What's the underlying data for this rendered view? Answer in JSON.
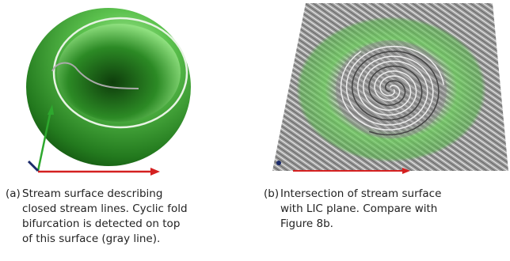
{
  "figures": [
    {
      "label": "(a)",
      "caption_lines": [
        "Stream surface describing",
        "closed stream lines. Cyclic fold",
        "bifurcation is detected on top",
        "of this surface (gray line)."
      ]
    },
    {
      "label": "(b)",
      "caption_lines": [
        "Intersection of stream surface",
        "with LIC plane. Compare with",
        "Figure 8b."
      ]
    }
  ]
}
